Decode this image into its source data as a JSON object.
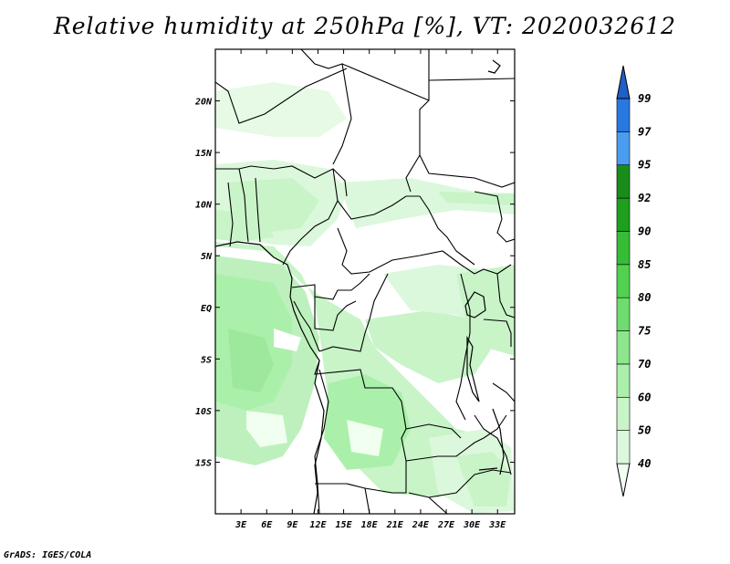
{
  "title": "Relative humidity at 250hPa [%], VT: 2020032612",
  "credit": "GrADS: IGES/COLA",
  "map": {
    "lon_range": [
      0,
      35
    ],
    "lat_range": [
      -20,
      25
    ],
    "lon_ticks": [
      "3E",
      "6E",
      "9E",
      "12E",
      "15E",
      "18E",
      "21E",
      "24E",
      "27E",
      "30E",
      "33E"
    ],
    "lat_ticks": [
      "20N",
      "15N",
      "10N",
      "5N",
      "EQ",
      "5S",
      "10S",
      "15S"
    ]
  },
  "colorbar": {
    "levels": [
      "40",
      "50",
      "60",
      "70",
      "75",
      "80",
      "85",
      "90",
      "92",
      "95",
      "97",
      "99"
    ],
    "colors": [
      "#f0fff0",
      "#dcf8dc",
      "#c8f4c8",
      "#aaf0aa",
      "#8ce68c",
      "#6edc6e",
      "#50d250",
      "#36bd36",
      "#1ea01e",
      "#1a8c1a",
      "#4a9cf0",
      "#2878e0",
      "#1e5fc8"
    ]
  }
}
